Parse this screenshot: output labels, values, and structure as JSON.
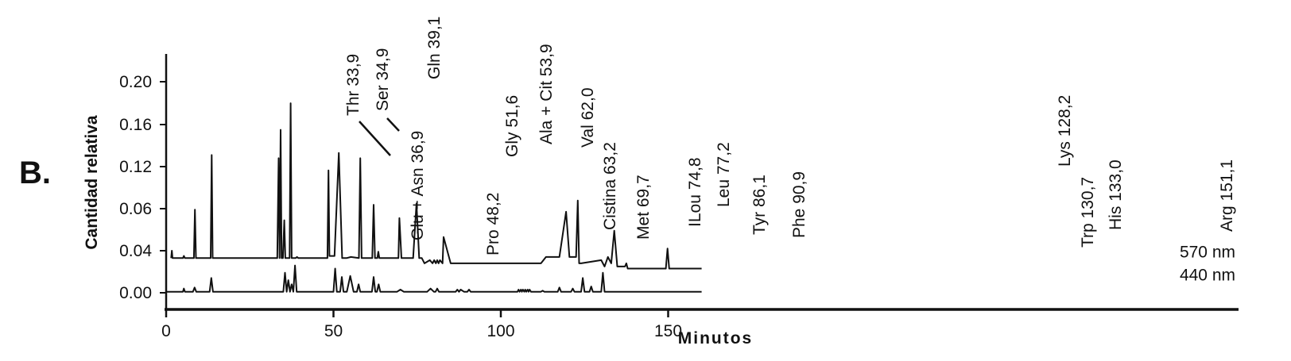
{
  "panel_label": "B.",
  "chart_data": {
    "type": "line",
    "xlabel": "Minutos",
    "ylabel": "Cantidad relativa",
    "xlim": [
      0,
      160
    ],
    "x_ticks": [
      0,
      50,
      100,
      150
    ],
    "x_tick_labels": [
      "0",
      "50",
      "100",
      "150"
    ],
    "y_tick_labels": [
      "0.00",
      "0.04",
      "0.06",
      "0.12",
      "0.16",
      "0.20"
    ],
    "series": [
      {
        "name": "570 nm",
        "x": [
          1.5,
          1.7,
          1.9,
          2.2,
          5,
          5.3,
          5.6,
          8.3,
          8.6,
          8.9,
          13.3,
          13.6,
          13.9,
          33.2,
          33.6,
          33.9,
          34.2,
          34.5,
          34.9,
          35.3,
          35.6,
          36.9,
          37.2,
          37.5,
          38.7,
          39.1,
          39.5,
          48.2,
          48.5,
          48.8,
          50.3,
          51.6,
          52.6,
          53.9,
          55.2,
          57.6,
          58,
          58.4,
          61.6,
          62,
          62.4,
          63.1,
          63.4,
          63.7,
          69.4,
          69.7,
          70.3,
          73.8,
          74.8,
          75.6,
          76.4,
          77.2,
          78.8,
          79.6,
          80.1,
          80.6,
          81,
          81.4,
          81.8,
          82.6,
          82.9,
          85,
          86.1,
          87,
          112,
          113.5,
          115,
          117.5,
          119.5,
          120.5,
          122.5,
          123,
          123.4,
          124,
          130,
          131,
          132,
          133,
          133.9,
          134.8,
          137.1,
          137.5,
          137.9,
          149.3,
          149.8,
          150.3,
          160
        ],
        "y": [
          0.03,
          0.037,
          0.03,
          0.03,
          0.03,
          0.032,
          0.03,
          0.03,
          0.058,
          0.03,
          0.03,
          0.128,
          0.03,
          0.03,
          0.125,
          0.03,
          0.152,
          0.03,
          0.03,
          0.053,
          0.03,
          0.03,
          0.177,
          0.03,
          0.03,
          0.031,
          0.03,
          0.03,
          0.11,
          0.032,
          0.032,
          0.13,
          0.03,
          0.03,
          0.031,
          0.03,
          0.125,
          0.03,
          0.03,
          0.061,
          0.03,
          0.03,
          0.036,
          0.03,
          0.03,
          0.054,
          0.03,
          0.03,
          0.063,
          0.03,
          0.03,
          0.025,
          0.028,
          0.025,
          0.028,
          0.025,
          0.028,
          0.025,
          0.028,
          0.025,
          0.045,
          0.025,
          0.025,
          0.025,
          0.025,
          0.031,
          0.031,
          0.031,
          0.057,
          0.031,
          0.031,
          0.067,
          0.025,
          0.025,
          0.028,
          0.022,
          0.031,
          0.025,
          0.048,
          0.022,
          0.022,
          0.025,
          0.02,
          0.02,
          0.039,
          0.02,
          0.02
        ]
      },
      {
        "name": "440 nm",
        "x": [
          0,
          5,
          5.3,
          5.6,
          8,
          8.5,
          9,
          13,
          13.5,
          14,
          35,
          35.5,
          36,
          36.5,
          37,
          37.5,
          38,
          38.5,
          39,
          40,
          50,
          50.5,
          51,
          52,
          52.5,
          53,
          54,
          55,
          56,
          57,
          57.5,
          58,
          61.5,
          62,
          62.5,
          63,
          63.5,
          64,
          69,
          70,
          71,
          78,
          79,
          80,
          80.5,
          81,
          81.5,
          82,
          84,
          85,
          86,
          86.5,
          87,
          87.5,
          88,
          89,
          90,
          90.5,
          91,
          92,
          100,
          105,
          105.3,
          105.6,
          106,
          106.3,
          106.6,
          107,
          107.3,
          107.6,
          108,
          108.3,
          108.6,
          109,
          112,
          112.5,
          113,
          114,
          117,
          117.5,
          118,
          121,
          121.5,
          122,
          124,
          124.5,
          125,
          126.5,
          127,
          127.5,
          128,
          130,
          130.5,
          131,
          135,
          160
        ],
        "y": [
          0.001,
          0.001,
          0.004,
          0.001,
          0.001,
          0.005,
          0.001,
          0.001,
          0.014,
          0.001,
          0.001,
          0.019,
          0.001,
          0.012,
          0.001,
          0.008,
          0.001,
          0.026,
          0.001,
          0.001,
          0.001,
          0.023,
          0.001,
          0.001,
          0.015,
          0.001,
          0.001,
          0.016,
          0.001,
          0.001,
          0.008,
          0.001,
          0.001,
          0.015,
          0.001,
          0.001,
          0.008,
          0.001,
          0.001,
          0.003,
          0.001,
          0.001,
          0.004,
          0.001,
          0.001,
          0.004,
          0.001,
          0.001,
          0.001,
          0.001,
          0.001,
          0.001,
          0.003,
          0.001,
          0.003,
          0.001,
          0.001,
          0.003,
          0.001,
          0.001,
          0.001,
          0.001,
          0.003,
          0.001,
          0.003,
          0.001,
          0.003,
          0.001,
          0.003,
          0.001,
          0.003,
          0.001,
          0.003,
          0.001,
          0.001,
          0.002,
          0.001,
          0.001,
          0.001,
          0.005,
          0.001,
          0.001,
          0.004,
          0.001,
          0.001,
          0.014,
          0.001,
          0.001,
          0.006,
          0.001,
          0.001,
          0.001,
          0.019,
          0.001,
          0.001,
          0.001
        ]
      }
    ],
    "peak_labels": [
      {
        "text": "Thr 33,9",
        "x": 33.9,
        "series": "570 nm"
      },
      {
        "text": "Ser 34,9",
        "x": 34.9,
        "series": "570 nm"
      },
      {
        "text": "Glu + Asn 36,9",
        "x": 36.9,
        "series": "570 nm"
      },
      {
        "text": "Gln 39,1",
        "x": 39.1,
        "series": "570 nm"
      },
      {
        "text": "Pro 48,2",
        "x": 48.2,
        "series": "570 nm"
      },
      {
        "text": "Gly 51,6",
        "x": 51.6,
        "series": "570 nm"
      },
      {
        "text": "Ala + Cit 53,9",
        "x": 53.9,
        "series": "570 nm"
      },
      {
        "text": "Val 62,0",
        "x": 62.0,
        "series": "570 nm"
      },
      {
        "text": "Cistina 63,2",
        "x": 63.2,
        "series": "570 nm"
      },
      {
        "text": "Met 69,7",
        "x": 69.7,
        "series": "570 nm"
      },
      {
        "text": "ILou 74,8",
        "x": 74.8,
        "series": "570 nm"
      },
      {
        "text": "Leu 77,2",
        "x": 77.2,
        "series": "570 nm"
      },
      {
        "text": "Tyr 86,1",
        "x": 86.1,
        "series": "570 nm"
      },
      {
        "text": "Phe 90,9",
        "x": 90.9,
        "series": "570 nm"
      },
      {
        "text": "Lys 128,2",
        "x": 128.2,
        "series": "570 nm"
      },
      {
        "text": "Trp 130,7",
        "x": 130.7,
        "series": "570 nm"
      },
      {
        "text": "His 133,0",
        "x": 133.0,
        "series": "570 nm"
      },
      {
        "text": "Arg 151,1",
        "x": 151.1,
        "series": "570 nm"
      }
    ],
    "legend": "trace labels at right end of each line"
  }
}
